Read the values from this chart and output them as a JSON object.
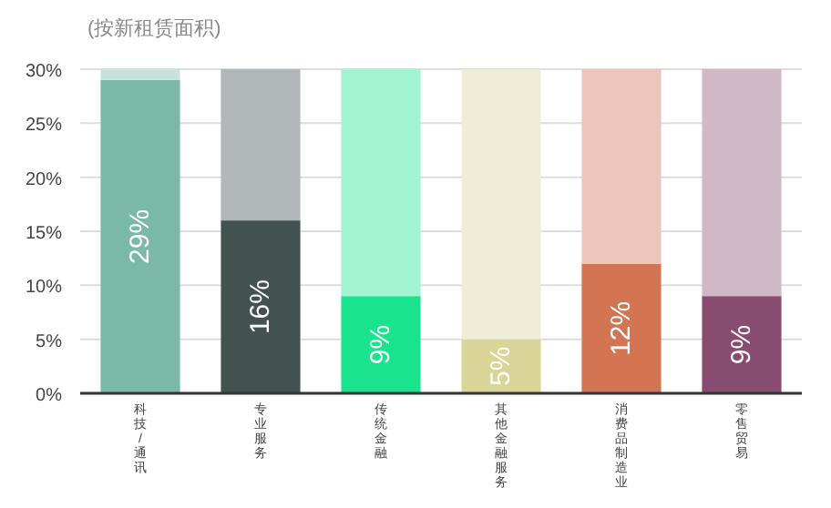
{
  "chart_data": {
    "type": "bar",
    "title": "(按新租赁面积)",
    "categories": [
      "科技/通讯",
      "专业服务",
      "传统金融",
      "其他金融服务",
      "消费品制造业",
      "零售贸易"
    ],
    "series": [
      {
        "colors": [
          "#7ab8a8",
          "#435250",
          "#1ae38e",
          "#d8d597",
          "#d37553",
          "#874c70"
        ],
        "values": [
          29,
          16,
          9,
          5,
          12,
          9
        ],
        "value_labels": [
          "29%",
          "16%",
          "9%",
          "5%",
          "12%",
          "9%"
        ]
      },
      {
        "colors": [
          "#c9e3dc",
          "#b2b7b9",
          "#a2f3d2",
          "#efedd6",
          "#ecc6ba",
          "#d0b8c7"
        ],
        "values": [
          1,
          14,
          21,
          25,
          18,
          21
        ]
      }
    ],
    "stacked": true,
    "ylim": [
      0,
      30
    ],
    "yticks": [
      {
        "value": 0,
        "label": "0%"
      },
      {
        "value": 5,
        "label": "5%"
      },
      {
        "value": 10,
        "label": "10%"
      },
      {
        "value": 15,
        "label": "15%"
      },
      {
        "value": 20,
        "label": "20%"
      },
      {
        "value": 25,
        "label": "25%"
      },
      {
        "value": 30,
        "label": "30%"
      }
    ],
    "grid": "y"
  }
}
